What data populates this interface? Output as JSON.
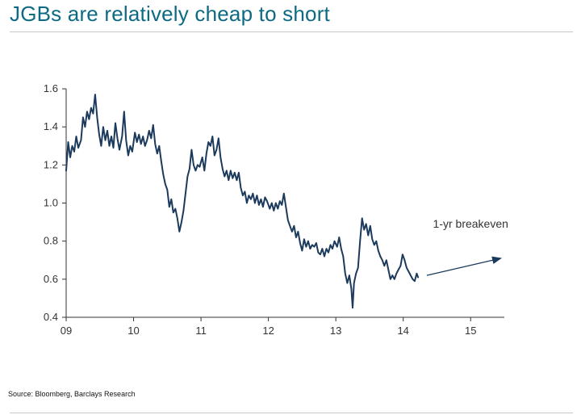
{
  "header": {
    "title": "JGBs are relatively cheap to short"
  },
  "footer": {
    "source": "Source: Bloomberg, Barclays Research"
  },
  "colors": {
    "title": "#0d6a82",
    "series": "#1b3a5c",
    "axis": "#333333"
  },
  "chart_data": {
    "type": "line",
    "title": "",
    "xlabel": "",
    "ylabel": "",
    "xlim": [
      2009.0,
      2015.5
    ],
    "ylim": [
      0.4,
      1.6
    ],
    "x_ticks": [
      {
        "value": 2009,
        "label": "09"
      },
      {
        "value": 2010,
        "label": "10"
      },
      {
        "value": 2011,
        "label": "11"
      },
      {
        "value": 2012,
        "label": "12"
      },
      {
        "value": 2013,
        "label": "13"
      },
      {
        "value": 2014,
        "label": "14"
      },
      {
        "value": 2015,
        "label": "15"
      }
    ],
    "y_ticks": [
      {
        "value": 0.4,
        "label": "0.4"
      },
      {
        "value": 0.6,
        "label": "0.6"
      },
      {
        "value": 0.8,
        "label": "0.8"
      },
      {
        "value": 1.0,
        "label": "1.0"
      },
      {
        "value": 1.2,
        "label": "1.2"
      },
      {
        "value": 1.4,
        "label": "1.4"
      },
      {
        "value": 1.6,
        "label": "1.6"
      }
    ],
    "grid": false,
    "series": [
      {
        "points": [
          [
            2009.0,
            1.17
          ],
          [
            2009.03,
            1.32
          ],
          [
            2009.06,
            1.24
          ],
          [
            2009.09,
            1.3
          ],
          [
            2009.12,
            1.27
          ],
          [
            2009.15,
            1.35
          ],
          [
            2009.18,
            1.29
          ],
          [
            2009.22,
            1.33
          ],
          [
            2009.25,
            1.45
          ],
          [
            2009.28,
            1.4
          ],
          [
            2009.31,
            1.48
          ],
          [
            2009.34,
            1.44
          ],
          [
            2009.37,
            1.5
          ],
          [
            2009.4,
            1.47
          ],
          [
            2009.43,
            1.57
          ],
          [
            2009.46,
            1.45
          ],
          [
            2009.49,
            1.36
          ],
          [
            2009.52,
            1.3
          ],
          [
            2009.55,
            1.4
          ],
          [
            2009.58,
            1.33
          ],
          [
            2009.61,
            1.38
          ],
          [
            2009.64,
            1.3
          ],
          [
            2009.67,
            1.35
          ],
          [
            2009.7,
            1.29
          ],
          [
            2009.73,
            1.42
          ],
          [
            2009.76,
            1.34
          ],
          [
            2009.79,
            1.28
          ],
          [
            2009.83,
            1.35
          ],
          [
            2009.86,
            1.48
          ],
          [
            2009.89,
            1.33
          ],
          [
            2009.92,
            1.25
          ],
          [
            2009.95,
            1.3
          ],
          [
            2009.98,
            1.27
          ],
          [
            2010.02,
            1.37
          ],
          [
            2010.05,
            1.32
          ],
          [
            2010.08,
            1.36
          ],
          [
            2010.11,
            1.31
          ],
          [
            2010.14,
            1.35
          ],
          [
            2010.17,
            1.3
          ],
          [
            2010.2,
            1.33
          ],
          [
            2010.23,
            1.38
          ],
          [
            2010.26,
            1.34
          ],
          [
            2010.29,
            1.41
          ],
          [
            2010.32,
            1.31
          ],
          [
            2010.35,
            1.26
          ],
          [
            2010.38,
            1.3
          ],
          [
            2010.41,
            1.22
          ],
          [
            2010.44,
            1.15
          ],
          [
            2010.47,
            1.1
          ],
          [
            2010.5,
            1.07
          ],
          [
            2010.53,
            0.98
          ],
          [
            2010.56,
            1.02
          ],
          [
            2010.59,
            0.95
          ],
          [
            2010.62,
            0.97
          ],
          [
            2010.65,
            0.92
          ],
          [
            2010.68,
            0.85
          ],
          [
            2010.71,
            0.9
          ],
          [
            2010.74,
            0.96
          ],
          [
            2010.77,
            1.05
          ],
          [
            2010.8,
            1.14
          ],
          [
            2010.83,
            1.18
          ],
          [
            2010.86,
            1.28
          ],
          [
            2010.89,
            1.2
          ],
          [
            2010.92,
            1.17
          ],
          [
            2010.95,
            1.2
          ],
          [
            2010.98,
            1.19
          ],
          [
            2011.02,
            1.24
          ],
          [
            2011.05,
            1.17
          ],
          [
            2011.08,
            1.26
          ],
          [
            2011.11,
            1.32
          ],
          [
            2011.14,
            1.3
          ],
          [
            2011.17,
            1.35
          ],
          [
            2011.2,
            1.25
          ],
          [
            2011.23,
            1.28
          ],
          [
            2011.26,
            1.34
          ],
          [
            2011.29,
            1.24
          ],
          [
            2011.32,
            1.18
          ],
          [
            2011.35,
            1.14
          ],
          [
            2011.38,
            1.17
          ],
          [
            2011.41,
            1.12
          ],
          [
            2011.44,
            1.17
          ],
          [
            2011.47,
            1.13
          ],
          [
            2011.5,
            1.16
          ],
          [
            2011.53,
            1.12
          ],
          [
            2011.56,
            1.16
          ],
          [
            2011.59,
            1.08
          ],
          [
            2011.62,
            1.04
          ],
          [
            2011.65,
            1.06
          ],
          [
            2011.68,
            1.0
          ],
          [
            2011.71,
            1.04
          ],
          [
            2011.74,
            1.02
          ],
          [
            2011.77,
            1.05
          ],
          [
            2011.8,
            1.0
          ],
          [
            2011.83,
            1.04
          ],
          [
            2011.86,
            0.99
          ],
          [
            2011.89,
            1.02
          ],
          [
            2011.92,
            0.98
          ],
          [
            2011.95,
            1.03
          ],
          [
            2011.98,
            1.01
          ],
          [
            2012.02,
            0.97
          ],
          [
            2012.05,
            1.0
          ],
          [
            2012.08,
            0.96
          ],
          [
            2012.11,
            1.0
          ],
          [
            2012.14,
            0.97
          ],
          [
            2012.17,
            1.01
          ],
          [
            2012.2,
            0.99
          ],
          [
            2012.23,
            1.05
          ],
          [
            2012.26,
            0.98
          ],
          [
            2012.29,
            0.91
          ],
          [
            2012.32,
            0.88
          ],
          [
            2012.35,
            0.85
          ],
          [
            2012.38,
            0.88
          ],
          [
            2012.41,
            0.82
          ],
          [
            2012.44,
            0.85
          ],
          [
            2012.47,
            0.79
          ],
          [
            2012.5,
            0.75
          ],
          [
            2012.53,
            0.81
          ],
          [
            2012.56,
            0.77
          ],
          [
            2012.59,
            0.8
          ],
          [
            2012.62,
            0.76
          ],
          [
            2012.65,
            0.78
          ],
          [
            2012.68,
            0.77
          ],
          [
            2012.71,
            0.79
          ],
          [
            2012.74,
            0.74
          ],
          [
            2012.77,
            0.73
          ],
          [
            2012.8,
            0.76
          ],
          [
            2012.83,
            0.72
          ],
          [
            2012.86,
            0.76
          ],
          [
            2012.89,
            0.74
          ],
          [
            2012.92,
            0.78
          ],
          [
            2012.95,
            0.76
          ],
          [
            2012.98,
            0.8
          ],
          [
            2013.02,
            0.77
          ],
          [
            2013.05,
            0.82
          ],
          [
            2013.08,
            0.76
          ],
          [
            2013.11,
            0.72
          ],
          [
            2013.14,
            0.63
          ],
          [
            2013.17,
            0.58
          ],
          [
            2013.2,
            0.62
          ],
          [
            2013.23,
            0.55
          ],
          [
            2013.25,
            0.45
          ],
          [
            2013.27,
            0.58
          ],
          [
            2013.3,
            0.63
          ],
          [
            2013.33,
            0.66
          ],
          [
            2013.36,
            0.8
          ],
          [
            2013.39,
            0.92
          ],
          [
            2013.42,
            0.86
          ],
          [
            2013.45,
            0.89
          ],
          [
            2013.48,
            0.83
          ],
          [
            2013.51,
            0.88
          ],
          [
            2013.54,
            0.81
          ],
          [
            2013.57,
            0.78
          ],
          [
            2013.6,
            0.8
          ],
          [
            2013.63,
            0.75
          ],
          [
            2013.66,
            0.72
          ],
          [
            2013.69,
            0.7
          ],
          [
            2013.72,
            0.67
          ],
          [
            2013.75,
            0.7
          ],
          [
            2013.78,
            0.65
          ],
          [
            2013.81,
            0.6
          ],
          [
            2013.84,
            0.62
          ],
          [
            2013.87,
            0.6
          ],
          [
            2013.9,
            0.63
          ],
          [
            2013.93,
            0.65
          ],
          [
            2013.96,
            0.67
          ],
          [
            2013.99,
            0.73
          ],
          [
            2014.02,
            0.7
          ],
          [
            2014.05,
            0.66
          ],
          [
            2014.08,
            0.64
          ],
          [
            2014.11,
            0.62
          ],
          [
            2014.14,
            0.6
          ],
          [
            2014.17,
            0.59
          ],
          [
            2014.2,
            0.63
          ],
          [
            2014.22,
            0.61
          ]
        ]
      }
    ],
    "annotations": [
      {
        "text": "1-yr breakeven",
        "x": 2015.0,
        "y": 0.87
      },
      {
        "type": "arrow",
        "from": [
          2014.35,
          0.62
        ],
        "to": [
          2015.45,
          0.71
        ]
      }
    ]
  }
}
